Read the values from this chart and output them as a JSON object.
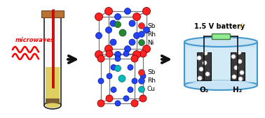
{
  "bg_color": "#ffffff",
  "microwave_text": "microwaves",
  "microwave_color": "#ff0000",
  "battery_text": "1.5 V battery",
  "o2_text": "O₂",
  "h2_text": "H₂",
  "arrow_color": "#111111",
  "tube_body_color": "#f8f8f8",
  "tube_liquid_color": "#ddd060",
  "tube_sediment_color": "#7a6030",
  "tube_cap_color": "#b87333",
  "tube_outline_color": "#222222",
  "tube_rod_color": "#cc0000",
  "tube_rod2_color": "#993300",
  "beaker_outline": "#4499cc",
  "beaker_fill": "#c8e4f5",
  "electrode_color": "#3a3a3a",
  "bubble_color": "#ffffff",
  "battery_box_color": "#90ee90",
  "battery_outline": "#447744",
  "wire_color": "#111111",
  "crystal_frame_color": "#777777",
  "sb_color": "#ff2222",
  "rh_color": "#2244ff",
  "ni_color": "#228833",
  "cu_color": "#00bbbb",
  "legend1": [
    "Sb",
    "Rh",
    "Ni"
  ],
  "legend1_colors": [
    "#ff2222",
    "#2244ff",
    "#228833"
  ],
  "legend2": [
    "Sb",
    "Rh",
    "Cu"
  ],
  "legend2_colors": [
    "#ff2222",
    "#2244ff",
    "#00bbbb"
  ],
  "bolt_color": "#cc8800"
}
